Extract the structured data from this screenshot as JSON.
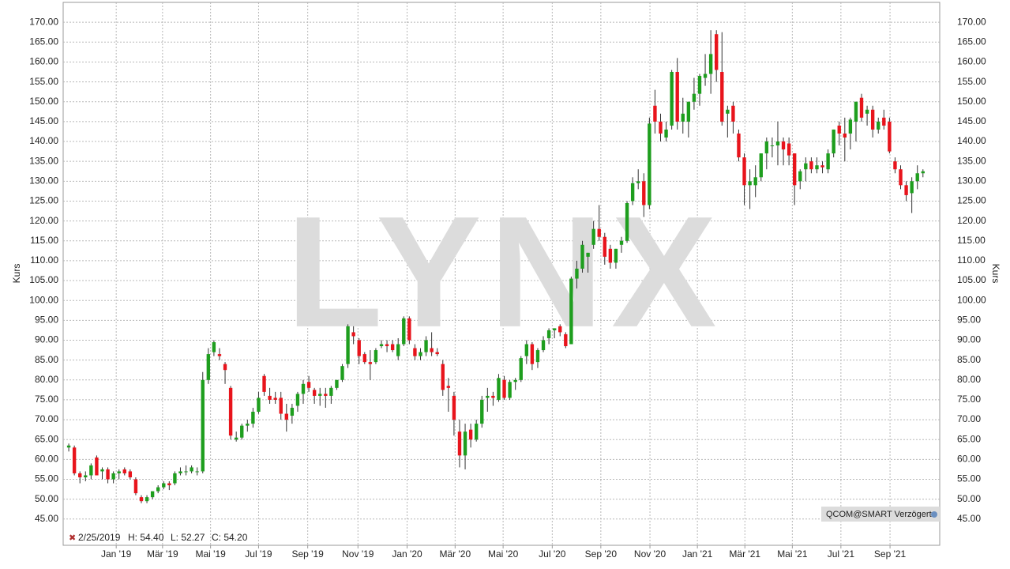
{
  "chart_data": {
    "type": "candlestick",
    "watermark": "LYNX",
    "y_label": "Kurs",
    "info": {
      "date": "2/25/2019",
      "high": "H: 54.40",
      "low": "L: 52.27",
      "close": "C: 54.20"
    },
    "source": "QCOM@SMART Verzögert",
    "up_color": "#1e9e1e",
    "down_color": "#e8141c",
    "grid": true,
    "ylim": [
      38.4,
      175
    ],
    "yticks": [
      {
        "value": 45,
        "label": "45.00"
      },
      {
        "value": 50,
        "label": "50.00"
      },
      {
        "value": 55,
        "label": "55.00"
      },
      {
        "value": 60,
        "label": "60.00"
      },
      {
        "value": 65,
        "label": "65.00"
      },
      {
        "value": 70,
        "label": "70.00"
      },
      {
        "value": 75,
        "label": "75.00"
      },
      {
        "value": 80,
        "label": "80.00"
      },
      {
        "value": 85,
        "label": "85.00"
      },
      {
        "value": 90,
        "label": "90.00"
      },
      {
        "value": 95,
        "label": "95.00"
      },
      {
        "value": 100,
        "label": "100.00"
      },
      {
        "value": 105,
        "label": "105.00"
      },
      {
        "value": 110,
        "label": "110.00"
      },
      {
        "value": 115,
        "label": "115.00"
      },
      {
        "value": 120,
        "label": "120.00"
      },
      {
        "value": 125,
        "label": "125.00"
      },
      {
        "value": 130,
        "label": "130.00"
      },
      {
        "value": 135,
        "label": "135.00"
      },
      {
        "value": 140,
        "label": "140.00"
      },
      {
        "value": 145,
        "label": "145.00"
      },
      {
        "value": 150,
        "label": "150.00"
      },
      {
        "value": 155,
        "label": "155.00"
      },
      {
        "value": 160,
        "label": "160.00"
      },
      {
        "value": 165,
        "label": "165.00"
      },
      {
        "value": 170,
        "label": "170.00"
      }
    ],
    "xlim": [
      -1,
      156
    ],
    "xticks": [
      {
        "value": 8.5,
        "label": "Jan '19"
      },
      {
        "value": 16.8,
        "label": "Mär '19"
      },
      {
        "value": 25.4,
        "label": "Mai '19"
      },
      {
        "value": 34.0,
        "label": "Jul '19"
      },
      {
        "value": 42.8,
        "label": "Sep '19"
      },
      {
        "value": 51.8,
        "label": "Nov '19"
      },
      {
        "value": 60.6,
        "label": "Jan '20"
      },
      {
        "value": 69.2,
        "label": "Mär '20"
      },
      {
        "value": 77.8,
        "label": "Mai '20"
      },
      {
        "value": 86.6,
        "label": "Jul '20"
      },
      {
        "value": 95.3,
        "label": "Sep '20"
      },
      {
        "value": 104.1,
        "label": "Nov '20"
      },
      {
        "value": 112.6,
        "label": "Jan '21"
      },
      {
        "value": 121.1,
        "label": "Mär '21"
      },
      {
        "value": 129.6,
        "label": "Mai '21"
      },
      {
        "value": 138.3,
        "label": "Jul '21"
      },
      {
        "value": 147.1,
        "label": "Sep '21"
      }
    ],
    "open": [
      63,
      63,
      56.5,
      55.5,
      56,
      60.5,
      57,
      57.5,
      55,
      56.5,
      57.5,
      57,
      55,
      50.5,
      49.5,
      50.5,
      52,
      53,
      54,
      54,
      56.5,
      57,
      57,
      57,
      57,
      80,
      87,
      86.5,
      84,
      78,
      65,
      65.5,
      68.5,
      69,
      72,
      81,
      76,
      75.5,
      75.5,
      71.5,
      71,
      73.5,
      76.5,
      79.5,
      77.5,
      76,
      76.5,
      76,
      78,
      80,
      84,
      92,
      90,
      86.5,
      84.5,
      84.5,
      88.5,
      89,
      89,
      86,
      89,
      95.5,
      88,
      86,
      87,
      88,
      87,
      84,
      78.5,
      76,
      67,
      61,
      67.5,
      65,
      69,
      75.5,
      76,
      75,
      80,
      75.5,
      79.5,
      80,
      86,
      89,
      84.5,
      87.5,
      90.5,
      92.5,
      93.5,
      91.5,
      89,
      105.5,
      108,
      111,
      114,
      118,
      116,
      113,
      109.5,
      114,
      115,
      125,
      129.5,
      130,
      124,
      149,
      145,
      141,
      144,
      157.5,
      145,
      145,
      150,
      152,
      156,
      157,
      167,
      157.5,
      147,
      149,
      142,
      136,
      129,
      129,
      131,
      137,
      139,
      139,
      140,
      139.5,
      137,
      130,
      133,
      135,
      133,
      134,
      133,
      137,
      144,
      142,
      142,
      145,
      151,
      147,
      148,
      143,
      146,
      145,
      135,
      133,
      129,
      127,
      130,
      132
    ],
    "high": [
      64,
      63.5,
      57,
      57,
      59,
      61,
      58,
      58,
      57,
      57.5,
      58,
      57.5,
      55.5,
      51,
      51,
      52,
      53.5,
      54.5,
      54.5,
      57,
      58,
      58.5,
      58.5,
      58,
      82,
      88,
      90,
      88,
      84.5,
      78.5,
      67,
      69,
      70,
      73,
      77,
      81.5,
      78,
      77,
      77,
      74,
      74,
      77,
      80,
      81,
      78,
      78,
      78,
      78.5,
      80,
      84,
      94,
      93.5,
      90.5,
      87,
      87.5,
      88,
      90,
      90,
      90,
      90.5,
      96,
      96,
      89,
      88,
      91,
      92,
      88,
      85,
      80.5,
      77,
      70,
      69,
      69,
      70,
      76,
      78,
      77,
      81.5,
      81,
      80,
      80.5,
      86,
      90,
      89.5,
      88,
      91,
      93,
      93,
      94,
      92,
      106,
      110,
      115,
      112,
      120,
      124,
      117,
      114,
      113,
      116,
      125,
      131,
      133,
      132,
      146,
      153,
      147,
      145,
      158,
      161,
      151,
      150,
      156,
      157,
      162,
      168,
      168,
      167.5,
      149,
      150,
      143,
      137,
      133,
      134,
      137,
      141,
      141,
      145,
      141,
      141,
      137,
      133,
      136,
      136,
      136,
      135,
      138,
      143,
      145,
      146,
      146,
      150,
      152,
      149,
      149,
      146,
      148,
      146,
      136,
      134,
      130,
      131,
      134,
      133
    ],
    "low": [
      62,
      56,
      54,
      54.5,
      55,
      56,
      55,
      54,
      54,
      55,
      56,
      55,
      51,
      49,
      49,
      50,
      51.5,
      52.5,
      52.3,
      53.5,
      56,
      56,
      56.5,
      56,
      56.5,
      79,
      86,
      85,
      79,
      65,
      64.5,
      65,
      67,
      68,
      71.5,
      76,
      74,
      74,
      70,
      67,
      69,
      72,
      74,
      77,
      74,
      73.5,
      73,
      74,
      77.5,
      79.5,
      83,
      89,
      84,
      84,
      80,
      84,
      88,
      87,
      87,
      85,
      88.5,
      89,
      85,
      85,
      86,
      86,
      86,
      76,
      72,
      66,
      58,
      57.5,
      63,
      64.5,
      68,
      72,
      73.5,
      74.5,
      75,
      75,
      77.5,
      79.5,
      84,
      82.5,
      83,
      87,
      89,
      90.5,
      91,
      88,
      89,
      103,
      107,
      107,
      113,
      115,
      109,
      108,
      108,
      112,
      114.5,
      124,
      128,
      121,
      123,
      142,
      140,
      140,
      143,
      143,
      142,
      141,
      148,
      149,
      154,
      152,
      155,
      144,
      141,
      142,
      135,
      124,
      123,
      126,
      130,
      133,
      136,
      134,
      134,
      134,
      124,
      128,
      130,
      132,
      132,
      132,
      132,
      136,
      139,
      135,
      138,
      140,
      145,
      144,
      141,
      142,
      143,
      137,
      132,
      128,
      125,
      122,
      128,
      131
    ],
    "close": [
      63.5,
      56.5,
      55.5,
      56,
      58.5,
      56,
      57.5,
      55,
      56.5,
      57,
      56.5,
      55.5,
      51.5,
      49.5,
      50.5,
      52,
      53,
      54,
      53.5,
      56.5,
      57,
      57,
      58,
      57,
      80,
      86.5,
      89.5,
      86,
      82.5,
      66,
      65.5,
      68.5,
      69,
      72,
      75.5,
      77,
      75,
      75,
      71.5,
      70,
      73,
      76.5,
      79,
      78,
      76,
      76.5,
      76,
      78,
      80,
      83.5,
      93.5,
      91,
      86,
      84.5,
      84,
      87.5,
      89,
      88.5,
      87.5,
      89,
      95.5,
      90,
      86,
      87,
      90,
      87,
      86.5,
      77.5,
      78,
      70,
      61,
      67,
      65,
      69,
      75,
      76,
      75.5,
      80.5,
      75.5,
      79.5,
      80,
      85.5,
      89,
      84,
      87.5,
      90,
      92.5,
      93,
      92,
      88.5,
      105.5,
      108,
      114,
      112,
      118,
      116,
      111,
      109.5,
      113,
      115,
      124.5,
      129.5,
      130,
      124,
      144.5,
      145,
      142,
      143,
      157.5,
      145,
      147,
      150,
      152,
      156.5,
      157,
      162,
      158,
      145,
      148,
      145,
      136,
      129,
      130,
      131,
      137,
      140,
      139,
      140,
      138,
      136.5,
      129,
      132.5,
      134.5,
      133,
      134,
      133.5,
      137,
      143,
      142,
      141,
      145.5,
      150,
      146,
      148,
      143,
      145,
      144,
      137.5,
      133,
      129,
      126.5,
      130,
      132,
      132.5
    ]
  }
}
